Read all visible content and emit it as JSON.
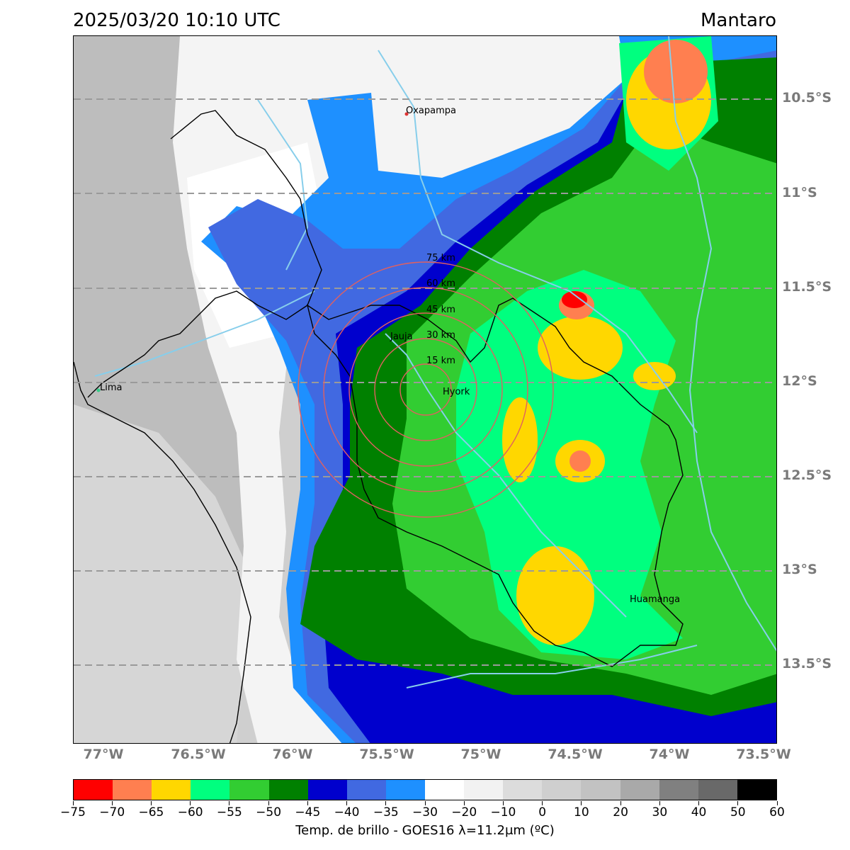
{
  "header": {
    "timestamp": "2025/03/20 10:10 UTC",
    "region": "Mantaro"
  },
  "map": {
    "lat_labels": [
      "10.5°S",
      "11°S",
      "11.5°S",
      "12°S",
      "12.5°S",
      "13°S",
      "13.5°S"
    ],
    "lon_labels": [
      "77°W",
      "76.5°W",
      "76°W",
      "75.5°W",
      "75°W",
      "74.5°W",
      "74°W",
      "73.5°W"
    ],
    "cities": {
      "oxapampa": "Oxapampa",
      "lima": "Lima",
      "jauja": "Jauja",
      "hyork": "Hyork",
      "huamanga": "Huamanga"
    },
    "rings": [
      "15 km",
      "30 km",
      "45 km",
      "60 km",
      "75 km"
    ],
    "ring_color": "#e06060",
    "grid_color": "#9a9a9a",
    "river_color": "#87ceeb"
  },
  "colorbar": {
    "colors": [
      "#ff0000",
      "#ff7f50",
      "#ffd700",
      "#00ff7f",
      "#32cd32",
      "#008000",
      "#0000cd",
      "#4169e1",
      "#1e90ff",
      "#ffffff",
      "#f2f2f2",
      "#dcdcdc",
      "#cfcfcf",
      "#c2c2c2",
      "#a9a9a9",
      "#808080",
      "#696969",
      "#000000"
    ],
    "ticks": [
      "−75",
      "−70",
      "−65",
      "−60",
      "−55",
      "−50",
      "−45",
      "−40",
      "−35",
      "−30",
      "−20",
      "−10",
      "0",
      "10",
      "20",
      "30",
      "40",
      "50",
      "60"
    ],
    "caption": "Temp. de brillo - GOES16 λ=11.2μm (ºC)"
  }
}
